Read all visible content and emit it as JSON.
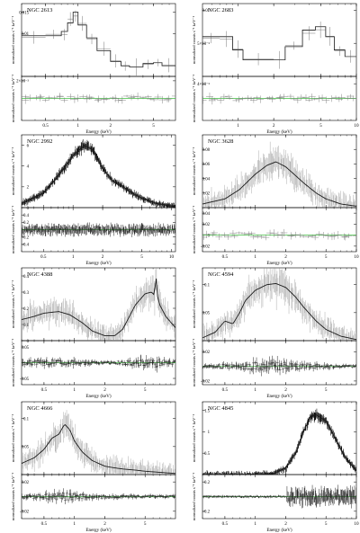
{
  "figure": {
    "xlabel": "Energy (keV)",
    "ylabel_top": "normalized counts s⁻¹ keV⁻¹",
    "ylabel_bottom": "normalized counts s⁻¹ keV⁻¹",
    "colors": {
      "data": "#000000",
      "model": "#1a1a1a",
      "residual_zero": "#3fbf3f",
      "frame": "#000000"
    }
  },
  "chart_data": [
    {
      "type": "line",
      "title": "NGC 2613",
      "xscale": "log",
      "xlim": [
        0.3,
        8
      ],
      "xticks": [
        0.5,
        1,
        2,
        5
      ],
      "xticklabels": [
        "0.5",
        "1",
        "2",
        "5"
      ],
      "top": {
        "ylim": [
          0,
          0.017
        ],
        "yscale": "linear",
        "yticks": [
          0.01,
          0.015
        ],
        "yticklabels": [
          "0.01",
          "0.015"
        ],
        "series": [
          {
            "style": "step",
            "x": [
              0.3,
              0.5,
              0.7,
              0.8,
              0.9,
              1.0,
              1.2,
              1.5,
              2.0,
              2.5,
              3.0,
              4.0,
              5.0,
              6.0,
              8.0
            ],
            "y": [
              0.0095,
              0.0095,
              0.0105,
              0.0125,
              0.015,
              0.012,
              0.009,
              0.006,
              0.0035,
              0.0025,
              0.0022,
              0.003,
              0.0032,
              0.0025,
              0.0018
            ]
          }
        ]
      },
      "bottom": {
        "ylim": [
          -0.0025,
          0.0025
        ],
        "yticks": [
          0.002
        ],
        "yticklabels": [
          "2×10⁻³"
        ],
        "zero": 0,
        "kind": "sparse"
      }
    },
    {
      "type": "line",
      "title": "NGC 2683",
      "xscale": "log",
      "xlim": [
        0.5,
        10
      ],
      "xticks": [
        1,
        2,
        5,
        10
      ],
      "xticklabels": [
        "1",
        "2",
        "5",
        "10"
      ],
      "top": {
        "ylim": [
          0,
          0.011
        ],
        "yscale": "linear",
        "yticks": [
          0.005,
          0.01
        ],
        "yticklabels": [
          "5×10⁻³",
          "0.01"
        ],
        "series": [
          {
            "style": "step",
            "x": [
              0.5,
              0.7,
              0.9,
              1.1,
              2.0,
              2.5,
              3.5,
              4.5,
              5.5,
              6.5,
              8.0,
              10.0
            ],
            "y": [
              0.006,
              0.006,
              0.004,
              0.0025,
              0.0025,
              0.0045,
              0.007,
              0.0075,
              0.006,
              0.004,
              0.003,
              0.003
            ]
          }
        ]
      },
      "bottom": {
        "ylim": [
          -0.006,
          0.006
        ],
        "yticks": [
          0.004
        ],
        "yticklabels": [
          "4×10⁻³"
        ],
        "zero": 0,
        "kind": "sparse"
      }
    },
    {
      "type": "line",
      "title": "NGC 2992",
      "xscale": "log",
      "xlim": [
        0.3,
        11
      ],
      "xticks": [
        0.5,
        1,
        2,
        5,
        10
      ],
      "xticklabels": [
        "0.5",
        "1",
        "2",
        "5",
        "10"
      ],
      "top": {
        "ylim": [
          0,
          7
        ],
        "yscale": "linear",
        "yticks": [
          0,
          2,
          4,
          6
        ],
        "yticklabels": [
          "0",
          "2",
          "4",
          "6"
        ],
        "series": [
          {
            "style": "band",
            "x": [
              0.3,
              0.5,
              0.7,
              1.0,
              1.3,
              1.6,
              2.0,
              2.5,
              3.0,
              4.0,
              5.0,
              7.0,
              10.0,
              11.0
            ],
            "y": [
              0.4,
              1.4,
              3.0,
              5.0,
              6.0,
              5.5,
              3.8,
              2.6,
              2.2,
              1.4,
              0.9,
              0.4,
              0.15,
              0.1
            ]
          }
        ]
      },
      "bottom": {
        "ylim": [
          -0.6,
          0.6
        ],
        "yticks": [
          -0.4,
          -0.2,
          0,
          0.2,
          0.4
        ],
        "yticklabels": [
          "-0.4",
          "-0.2",
          "0",
          "0.2",
          "0.4"
        ],
        "zero": 0,
        "kind": "dense"
      }
    },
    {
      "type": "line",
      "title": "NGC 3628",
      "xscale": "log",
      "xlim": [
        0.3,
        10
      ],
      "xticks": [
        0.5,
        1,
        2,
        5,
        10
      ],
      "xticklabels": [
        "0.5",
        "1",
        "2",
        "5",
        "10"
      ],
      "top": {
        "ylim": [
          0,
          0.1
        ],
        "yscale": "linear",
        "yticks": [
          0,
          0.02,
          0.04,
          0.06,
          0.08
        ],
        "yticklabels": [
          "0",
          "0.02",
          "0.04",
          "0.06",
          "0.08"
        ],
        "series": [
          {
            "style": "model",
            "x": [
              0.3,
              0.5,
              0.7,
              1.0,
              1.3,
              1.6,
              2.0,
              2.5,
              3.0,
              4.0,
              5.0,
              7.0,
              10.0
            ],
            "y": [
              0.005,
              0.012,
              0.025,
              0.046,
              0.058,
              0.063,
              0.056,
              0.044,
              0.034,
              0.02,
              0.012,
              0.005,
              0.002
            ]
          }
        ]
      },
      "bottom": {
        "ylim": [
          -0.03,
          0.05
        ],
        "yticks": [
          -0.02,
          0,
          0.02,
          0.04
        ],
        "yticklabels": [
          "-0.02",
          "0",
          "0.02",
          "0.04"
        ],
        "zero": 0,
        "kind": "sparse"
      }
    },
    {
      "type": "line",
      "title": "NGC 4388",
      "xscale": "log",
      "xlim": [
        0.3,
        10
      ],
      "xticks": [
        0.5,
        1,
        2,
        5
      ],
      "xticklabels": [
        "0.5",
        "1",
        "2",
        "5"
      ],
      "top": {
        "ylim": [
          0,
          0.45
        ],
        "yscale": "linear",
        "yticks": [
          0,
          0.1,
          0.2,
          0.3,
          0.4
        ],
        "yticklabels": [
          "0",
          "0.1",
          "0.2",
          "0.3",
          "0.4"
        ],
        "series": [
          {
            "style": "model",
            "x": [
              0.3,
              0.4,
              0.5,
              0.7,
              0.9,
              1.2,
              1.5,
              2.0,
              2.5,
              3.0,
              3.5,
              4.0,
              5.0,
              5.8,
              6.2,
              6.4,
              6.6,
              7.0,
              8.0,
              10.0
            ],
            "y": [
              0.13,
              0.15,
              0.17,
              0.18,
              0.16,
              0.11,
              0.06,
              0.03,
              0.03,
              0.07,
              0.15,
              0.22,
              0.29,
              0.3,
              0.28,
              0.42,
              0.28,
              0.22,
              0.15,
              0.08
            ]
          }
        ]
      },
      "bottom": {
        "ylim": [
          -0.07,
          0.07
        ],
        "yticks": [
          -0.05,
          0,
          0.05
        ],
        "yticklabels": [
          "-0.05",
          "0",
          "0.05"
        ],
        "zero": 0,
        "kind": "mixed"
      }
    },
    {
      "type": "line",
      "title": "NGC 4594",
      "xscale": "log",
      "xlim": [
        0.3,
        10
      ],
      "xticks": [
        0.5,
        1,
        2,
        5
      ],
      "xticklabels": [
        "0.5",
        "1",
        "2",
        "5"
      ],
      "top": {
        "ylim": [
          0,
          0.13
        ],
        "yscale": "linear",
        "yticks": [
          0,
          0.05,
          0.1
        ],
        "yticklabels": [
          "0",
          "0.05",
          "0.1"
        ],
        "series": [
          {
            "style": "model",
            "x": [
              0.3,
              0.4,
              0.5,
              0.6,
              0.7,
              0.8,
              1.0,
              1.3,
              1.6,
              2.0,
              2.5,
              3.0,
              4.0,
              5.0,
              7.0,
              10.0
            ],
            "y": [
              0.005,
              0.015,
              0.035,
              0.03,
              0.05,
              0.072,
              0.09,
              0.1,
              0.102,
              0.095,
              0.078,
              0.06,
              0.035,
              0.02,
              0.008,
              0.002
            ]
          }
        ]
      },
      "bottom": {
        "ylim": [
          -0.025,
          0.035
        ],
        "yticks": [
          -0.02,
          0,
          0.02
        ],
        "yticklabels": [
          "-0.02",
          "0",
          "0.02"
        ],
        "zero": 0,
        "kind": "mixed"
      }
    },
    {
      "type": "line",
      "title": "NGC 4666",
      "xscale": "log",
      "xlim": [
        0.3,
        10
      ],
      "xticks": [
        0.5,
        1,
        2,
        5
      ],
      "xticklabels": [
        "0.5",
        "1",
        "2",
        "5"
      ],
      "top": {
        "ylim": [
          0,
          0.13
        ],
        "yscale": "linear",
        "yticks": [
          0,
          0.05,
          0.1
        ],
        "yticklabels": [
          "0",
          "0.05",
          "0.1"
        ],
        "series": [
          {
            "style": "model",
            "x": [
              0.3,
              0.4,
              0.5,
              0.6,
              0.7,
              0.8,
              0.9,
              1.0,
              1.2,
              1.5,
              2.0,
              2.5,
              3.0,
              4.0,
              5.0,
              7.0,
              10.0
            ],
            "y": [
              0.02,
              0.03,
              0.045,
              0.065,
              0.072,
              0.09,
              0.08,
              0.06,
              0.04,
              0.025,
              0.015,
              0.012,
              0.01,
              0.008,
              0.006,
              0.004,
              0.002
            ]
          }
        ]
      },
      "bottom": {
        "ylim": [
          -0.03,
          0.03
        ],
        "yticks": [
          -0.02,
          0,
          0.02
        ],
        "yticklabels": [
          "-0.02",
          "0",
          "0.02"
        ],
        "zero": 0,
        "kind": "mixed"
      }
    },
    {
      "type": "line",
      "title": "NGC 4845",
      "xscale": "log",
      "xlim": [
        0.3,
        10
      ],
      "xticks": [
        0.5,
        1,
        2,
        5,
        10
      ],
      "xticklabels": [
        "0.5",
        "1",
        "2",
        "5",
        "10"
      ],
      "top": {
        "ylim": [
          0,
          1.7
        ],
        "yscale": "linear",
        "yticks": [
          0,
          0.5,
          1,
          1.5
        ],
        "yticklabels": [
          "0",
          "0.5",
          "1",
          "1.5"
        ],
        "series": [
          {
            "style": "band",
            "x": [
              0.3,
              1.0,
              1.5,
              2.0,
              2.5,
              3.0,
              3.5,
              4.0,
              5.0,
              6.0,
              7.0,
              8.0,
              10.0
            ],
            "y": [
              0.0,
              0.0,
              0.02,
              0.15,
              0.5,
              1.0,
              1.35,
              1.4,
              1.25,
              0.9,
              0.6,
              0.35,
              0.1
            ]
          }
        ]
      },
      "bottom": {
        "ylim": [
          -0.3,
          0.3
        ],
        "yticks": [
          -0.2,
          0,
          0.2
        ],
        "yticklabels": [
          "-0.2",
          "0",
          "0.2"
        ],
        "zero": 0,
        "kind": "denseHigh"
      }
    }
  ]
}
